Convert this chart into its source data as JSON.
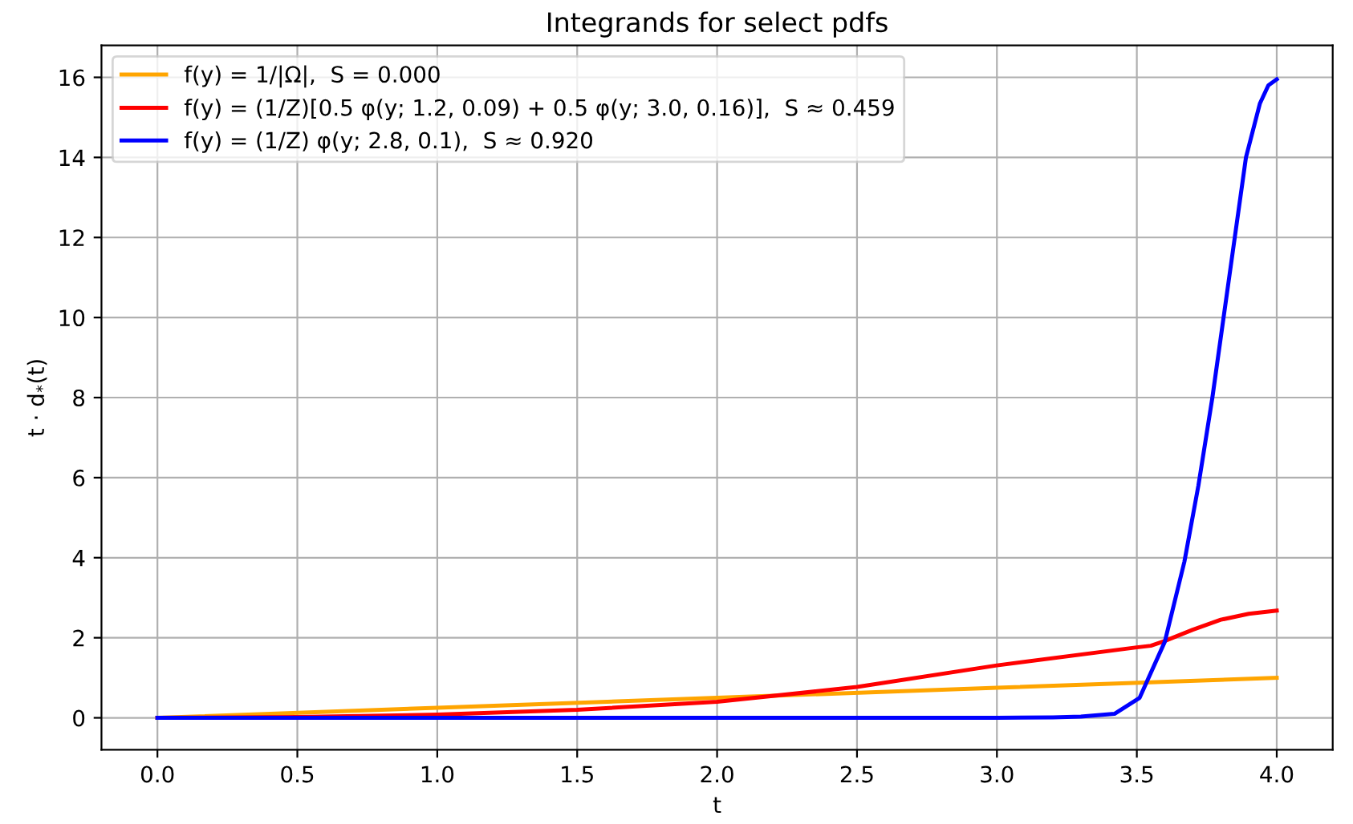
{
  "chart_data": {
    "type": "line",
    "title": "Integrands for select pdfs",
    "xlabel": "t",
    "ylabel": "t · d$_{*}$(t)",
    "xlim": [
      -0.2,
      4.2
    ],
    "ylim": [
      -0.8,
      16.8
    ],
    "xticks": [
      {
        "value": 0,
        "label": "0.0"
      },
      0.5,
      {
        "value": 1,
        "label": "1.0"
      },
      1.5,
      {
        "value": 2,
        "label": "2.0"
      },
      2.5,
      {
        "value": 3,
        "label": "3.0"
      },
      3.5,
      {
        "value": 4,
        "label": "4.0"
      }
    ],
    "yticks": [
      0,
      2,
      4,
      6,
      8,
      10,
      12,
      14,
      16
    ],
    "grid": true,
    "legend": "top left",
    "series": [
      {
        "name": "f(y) = 1/|Ω|,  S = 0.000",
        "color": "#ffa500",
        "x": [
          0,
          1,
          2,
          3,
          4
        ],
        "values": [
          0,
          0.25,
          0.5,
          0.75,
          1.0
        ]
      },
      {
        "name": "f(y) = (1/Z)[0.5 φ(y; 1.2, 0.09) + 0.5 φ(y; 3.0, 0.16)],  S ≈ 0.459",
        "color": "#ff0000",
        "x": [
          0,
          0.5,
          1.0,
          1.5,
          2.0,
          2.5,
          3.0,
          3.5,
          3.55,
          3.6,
          3.7,
          3.8,
          3.9,
          4.0
        ],
        "values": [
          0,
          0.02,
          0.08,
          0.2,
          0.4,
          0.77,
          1.31,
          1.76,
          1.8,
          1.92,
          2.2,
          2.45,
          2.6,
          2.68
        ]
      },
      {
        "name": "f(y) = (1/Z) φ(y; 2.8, 0.1),  S ≈ 0.920",
        "color": "#0000ff",
        "x": [
          0,
          3.0,
          3.2,
          3.3,
          3.42,
          3.51,
          3.6,
          3.67,
          3.72,
          3.77,
          3.81,
          3.85,
          3.89,
          3.94,
          3.97,
          4.0
        ],
        "values": [
          0,
          0,
          0.01,
          0.03,
          0.1,
          0.5,
          1.9,
          3.9,
          5.8,
          8.0,
          10.0,
          12.0,
          14.0,
          15.35,
          15.8,
          15.95
        ]
      }
    ]
  }
}
